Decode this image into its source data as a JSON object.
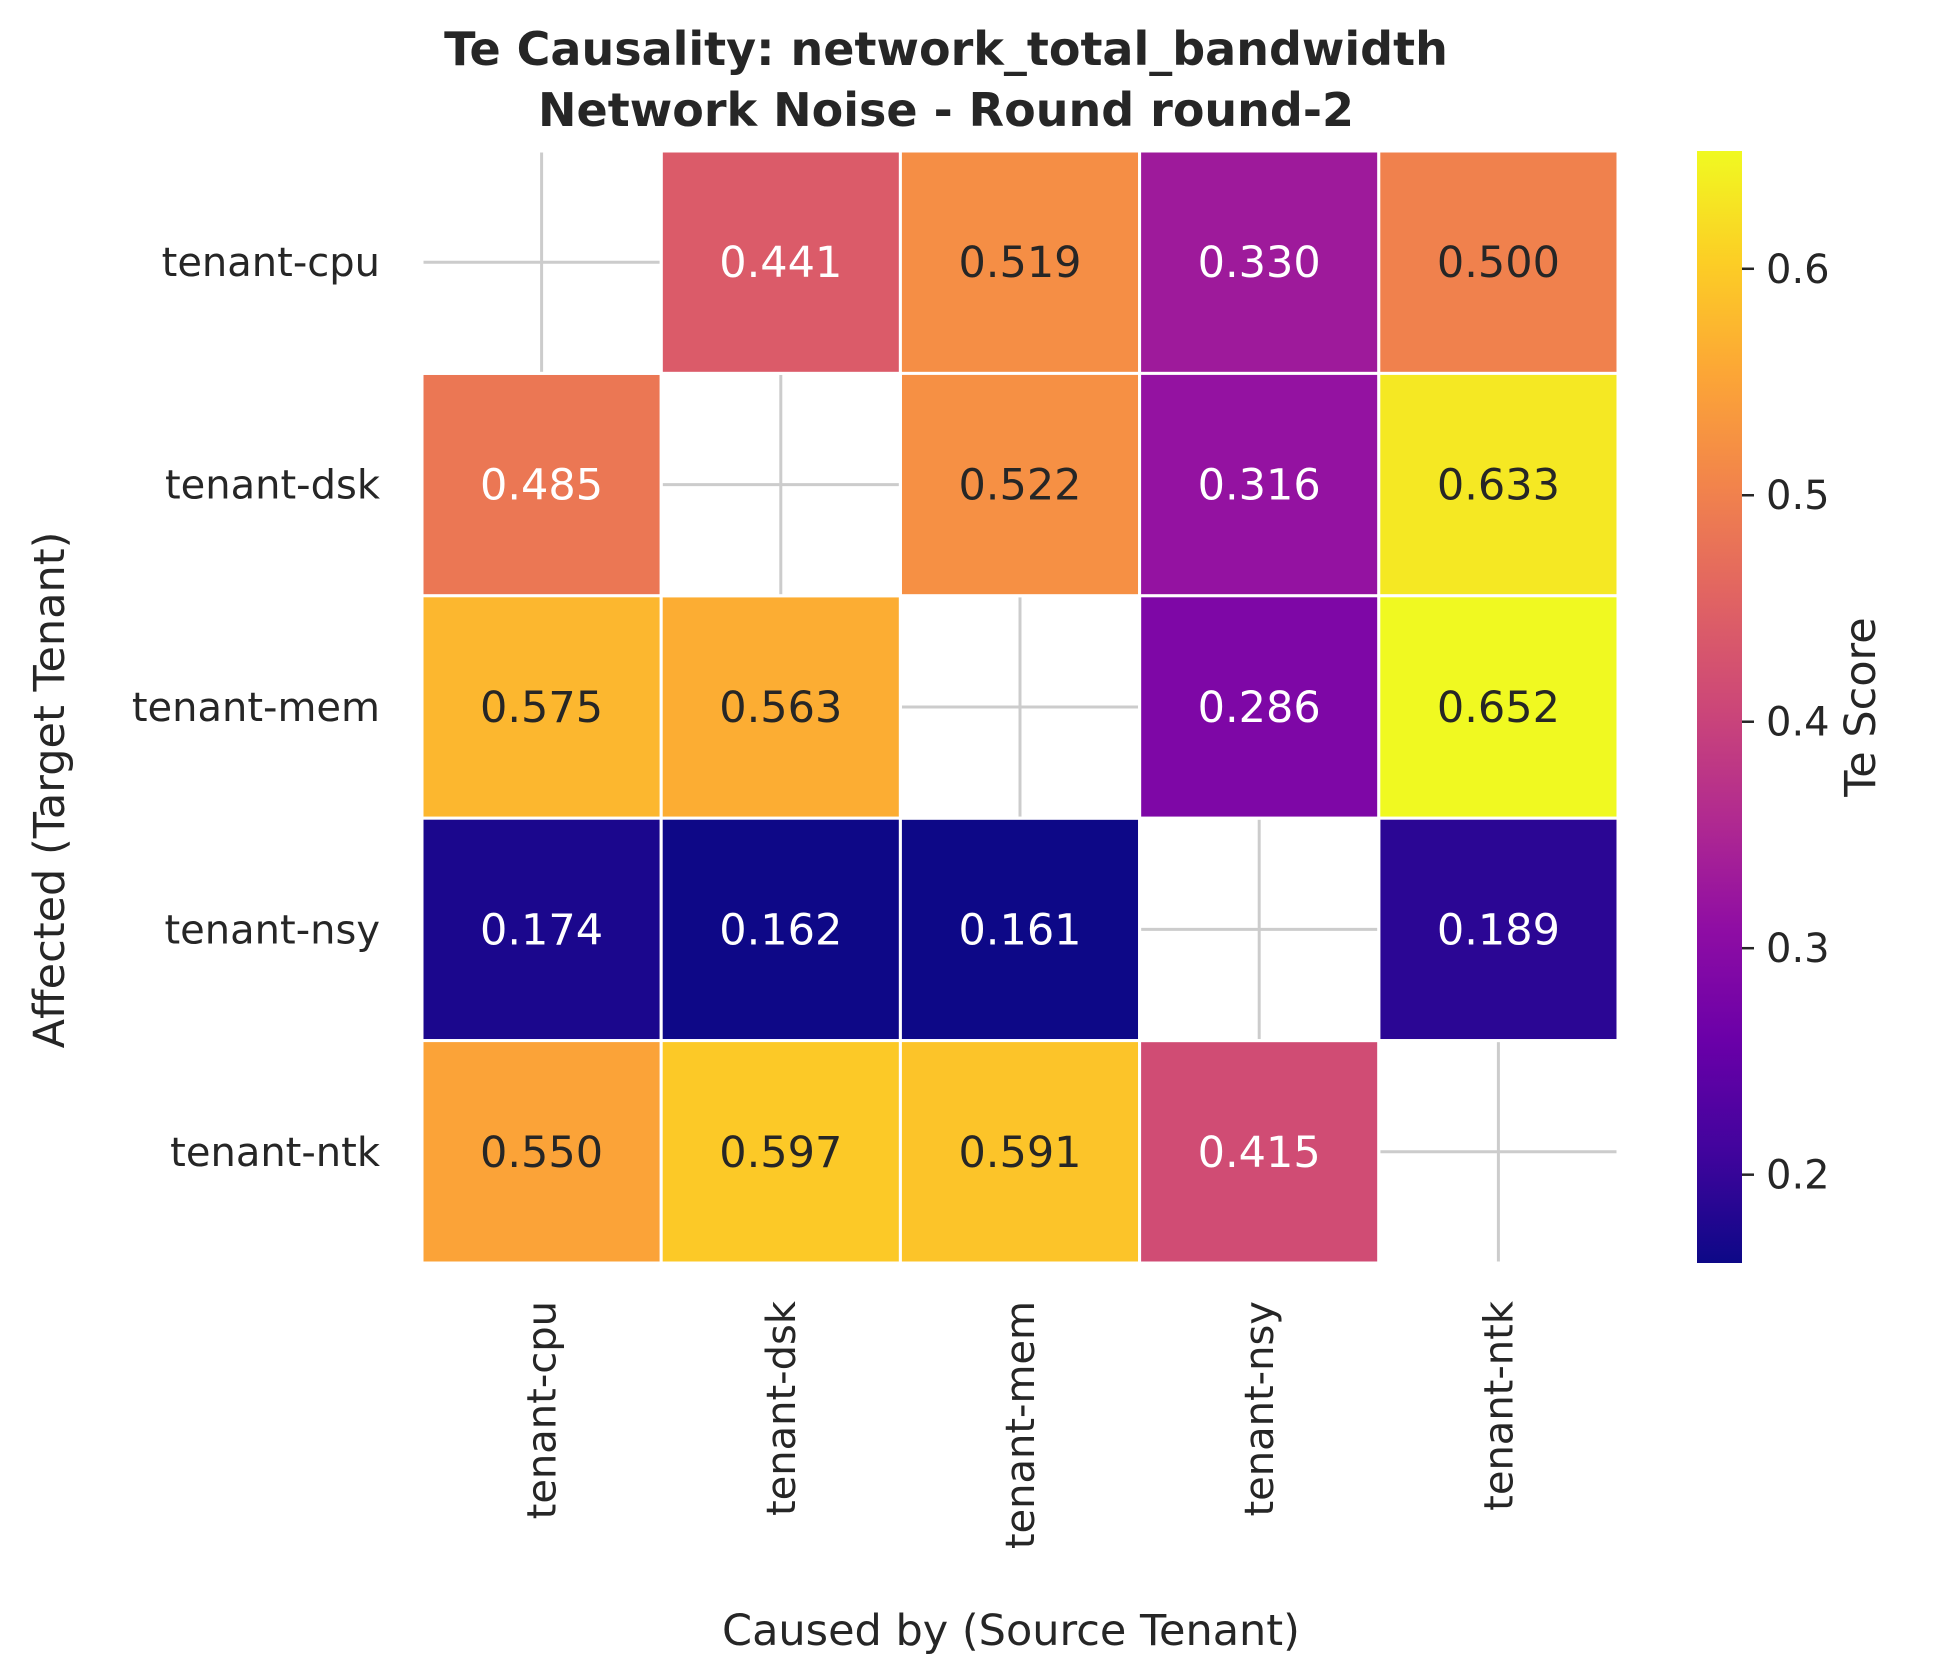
{
  "chart_data": {
    "type": "heatmap",
    "title": "Te Causality: network_total_bandwidth",
    "subtitle": "Network Noise - Round round-2",
    "xlabel": "Caused by (Source Tenant)",
    "ylabel": "Affected (Target Tenant)",
    "x_categories": [
      "tenant-cpu",
      "tenant-dsk",
      "tenant-mem",
      "tenant-nsy",
      "tenant-ntk"
    ],
    "y_categories": [
      "tenant-cpu",
      "tenant-dsk",
      "tenant-mem",
      "tenant-nsy",
      "tenant-ntk"
    ],
    "values": [
      [
        null,
        0.441,
        0.519,
        0.33,
        0.5
      ],
      [
        0.485,
        null,
        0.522,
        0.316,
        0.633
      ],
      [
        0.575,
        0.563,
        null,
        0.286,
        0.652
      ],
      [
        0.174,
        0.162,
        0.161,
        null,
        0.189
      ],
      [
        0.55,
        0.597,
        0.591,
        0.415,
        null
      ]
    ],
    "cell_labels": [
      [
        "",
        "0.441",
        "0.519",
        "0.330",
        "0.500"
      ],
      [
        "0.485",
        "",
        "0.522",
        "0.316",
        "0.633"
      ],
      [
        "0.575",
        "0.563",
        "",
        "0.286",
        "0.652"
      ],
      [
        "0.174",
        "0.162",
        "0.161",
        "",
        "0.189"
      ],
      [
        "0.550",
        "0.597",
        "0.591",
        "0.415",
        ""
      ]
    ],
    "colormap": "plasma",
    "vmin": 0.161,
    "vmax": 0.652,
    "colorbar": {
      "label": "Te Score",
      "ticks": [
        0.2,
        0.3,
        0.4,
        0.5,
        0.6
      ],
      "tick_labels": [
        "0.2",
        "0.3",
        "0.4",
        "0.5",
        "0.6"
      ]
    },
    "grid": true,
    "colors": {
      "grid": "#cccccc",
      "cell_border": "#ffffff",
      "text_dark": "#262626",
      "text_light": "#ffffff"
    }
  }
}
